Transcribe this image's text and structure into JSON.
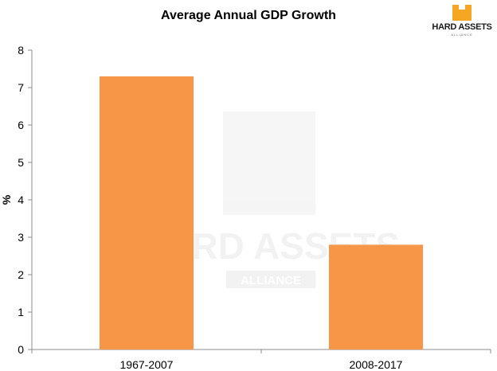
{
  "chart_data": {
    "type": "bar",
    "title": "Average Annual GDP Growth",
    "xlabel": "",
    "ylabel": "%",
    "categories": [
      "1967-2007",
      "2008-2017"
    ],
    "values": [
      7.3,
      2.8
    ],
    "ylim": [
      0,
      8
    ],
    "yticks": [
      0,
      1,
      2,
      3,
      4,
      5,
      6,
      7,
      8
    ],
    "grid": false,
    "legend": "none",
    "bar_color": "#F79646",
    "axis_color": "#8C8C8C"
  },
  "logo": {
    "text": "HARD ASSETS",
    "sub": "ALLIANCE",
    "color": "#F5A623"
  },
  "watermark": {
    "text": "HARD ASSETS",
    "sub": "ALLIANCE"
  }
}
